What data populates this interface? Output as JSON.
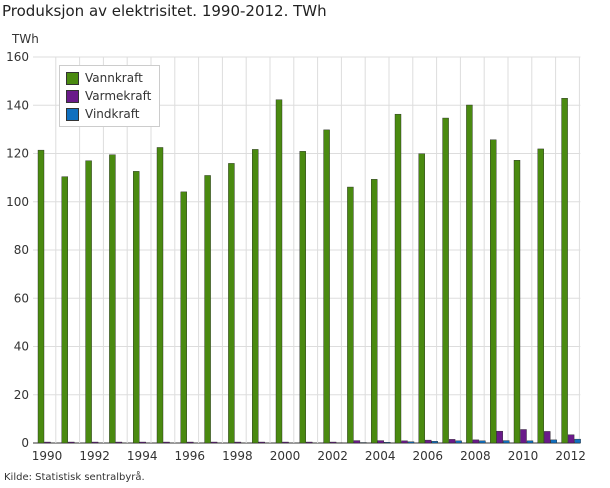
{
  "title": "Produksjon av elektrisitet. 1990-2012. TWh",
  "source": "Kilde: Statistisk sentralbyrå.",
  "chart_data": {
    "type": "bar",
    "title": "Produksjon av elektrisitet. 1990-2012. TWh",
    "ylabel": "TWh",
    "ylim": [
      0,
      160
    ],
    "yticks": [
      0,
      20,
      40,
      60,
      80,
      100,
      120,
      140,
      160
    ],
    "xticks": [
      "1990",
      "1992",
      "1994",
      "1996",
      "1998",
      "2000",
      "2002",
      "2004",
      "2006",
      "2008",
      "2010",
      "2012"
    ],
    "grid": true,
    "legend": "top-left",
    "categories": [
      "1990",
      "1991",
      "1992",
      "1993",
      "1994",
      "1995",
      "1996",
      "1997",
      "1998",
      "1999",
      "2000",
      "2001",
      "2002",
      "2003",
      "2004",
      "2005",
      "2006",
      "2007",
      "2008",
      "2009",
      "2010",
      "2011",
      "2012"
    ],
    "series": [
      {
        "name": "Vannkraft",
        "color": "#4a8a10",
        "values": [
          121.4,
          110.4,
          117.0,
          119.5,
          112.6,
          122.5,
          104.1,
          110.9,
          115.9,
          121.7,
          142.3,
          120.9,
          129.8,
          106.1,
          109.3,
          136.3,
          119.9,
          134.7,
          140.1,
          125.7,
          117.2,
          121.9,
          142.9
        ]
      },
      {
        "name": "Varmekraft",
        "color": "#6a1a8a",
        "values": [
          0.4,
          0.4,
          0.4,
          0.4,
          0.4,
          0.4,
          0.4,
          0.4,
          0.4,
          0.4,
          0.4,
          0.4,
          0.4,
          1.0,
          1.0,
          0.9,
          1.2,
          1.5,
          1.3,
          4.9,
          5.6,
          4.8,
          3.4
        ]
      },
      {
        "name": "Vindkraft",
        "color": "#1070c0",
        "values": [
          0,
          0,
          0,
          0,
          0,
          0,
          0,
          0,
          0,
          0,
          0,
          0,
          0.1,
          0.2,
          0.3,
          0.5,
          0.7,
          0.9,
          0.9,
          1.0,
          0.9,
          1.3,
          1.6
        ]
      }
    ]
  }
}
